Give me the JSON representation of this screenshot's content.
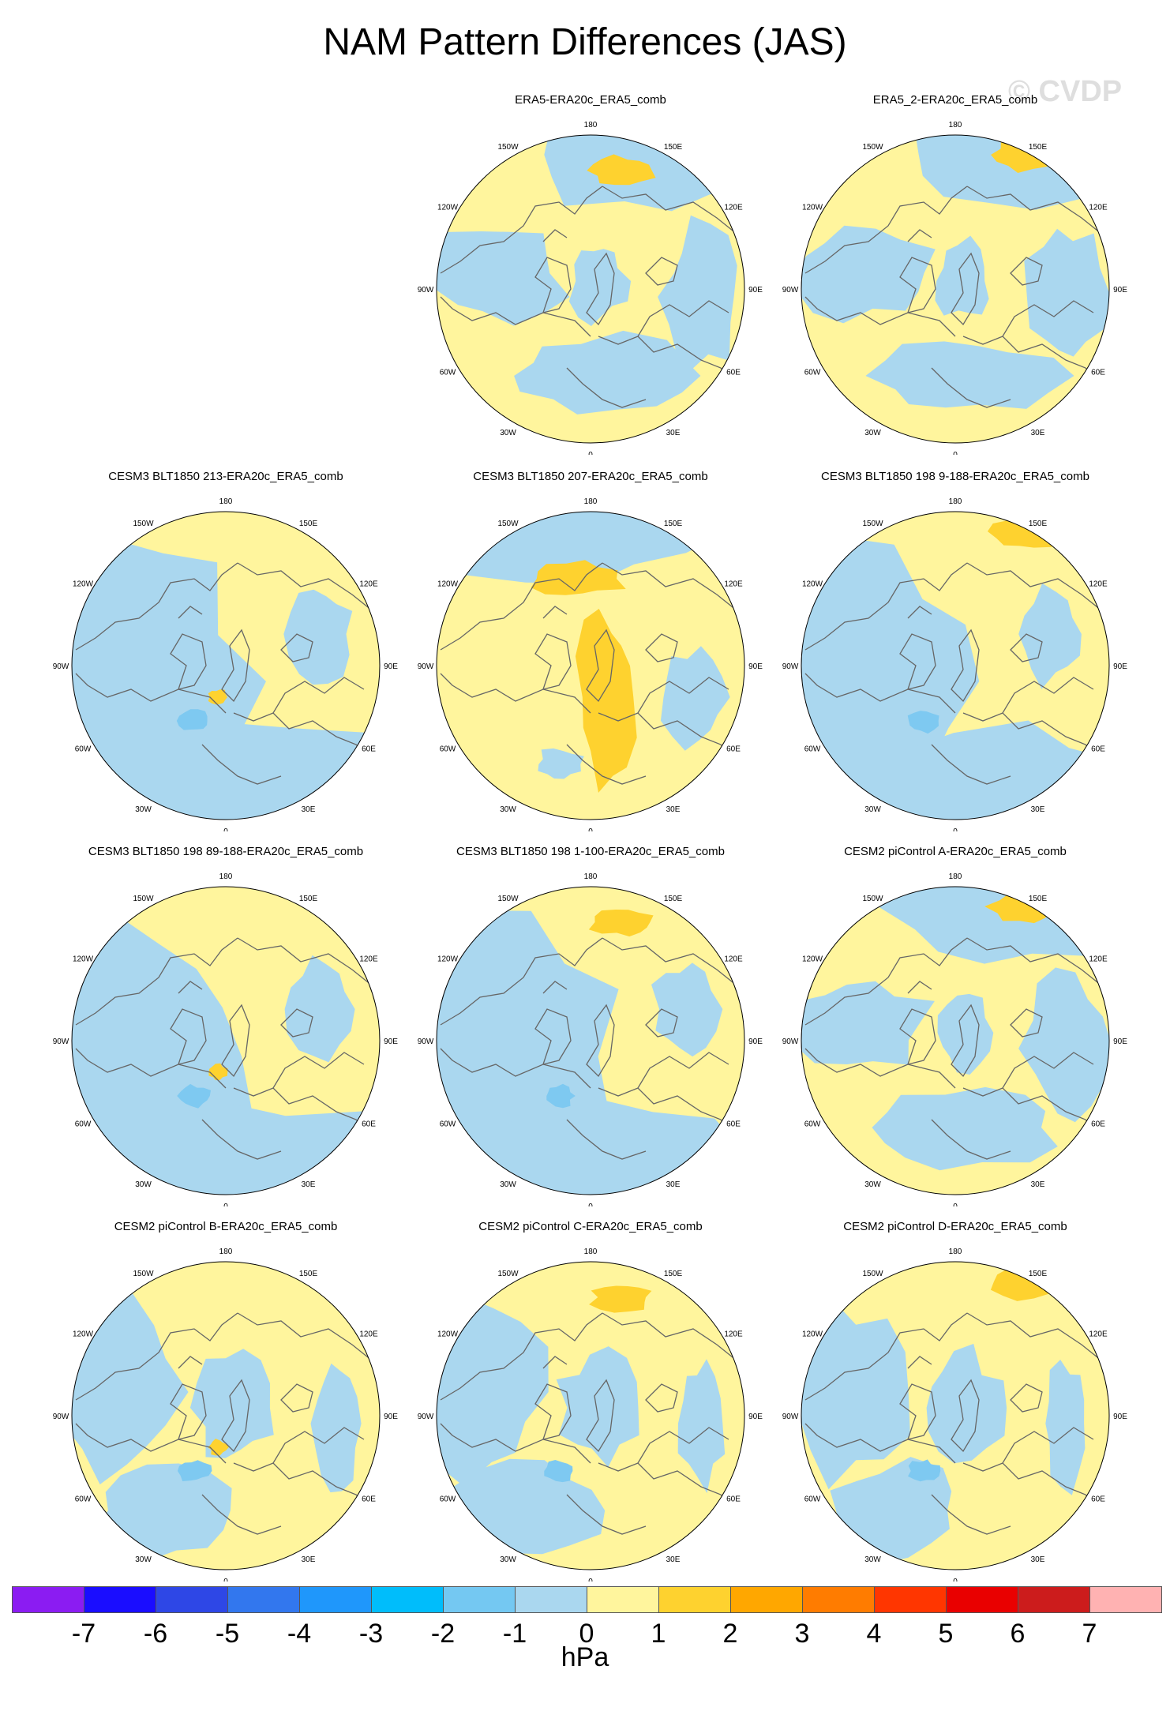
{
  "title": "NAM Pattern Differences (JAS)",
  "watermark": "© CVDP",
  "lon_labels": [
    "180",
    "150E",
    "120E",
    "90E",
    "60E",
    "30E",
    "0",
    "30W",
    "60W",
    "90W",
    "120W",
    "150W"
  ],
  "colors": {
    "neg1_0": "#aad7ef",
    "zero_1": "#fff59d",
    "one_2": "#fed22f",
    "neg2_neg1": "#7ec9f1",
    "coast": "#666666"
  },
  "panels": [
    {
      "title": "ERA5-ERA20c_ERA5_comb",
      "row": 0,
      "col": 1,
      "pattern": "mixed-blue-ring",
      "variant": 0
    },
    {
      "title": "ERA5_2-ERA20c_ERA5_comb",
      "row": 0,
      "col": 2,
      "pattern": "mixed-blue-ring",
      "variant": 1
    },
    {
      "title": "CESM3 BLT1850 213-ERA20c_ERA5_comb",
      "row": 1,
      "col": 0,
      "pattern": "blue-west",
      "variant": 2
    },
    {
      "title": "CESM3 BLT1850 207-ERA20c_ERA5_comb",
      "row": 1,
      "col": 1,
      "pattern": "yellow-orange",
      "variant": 3
    },
    {
      "title": "CESM3 BLT1850 198 9-188-ERA20c_ERA5_comb",
      "row": 1,
      "col": 2,
      "pattern": "blue-west",
      "variant": 4
    },
    {
      "title": "CESM3 BLT1850 198 89-188-ERA20c_ERA5_comb",
      "row": 2,
      "col": 0,
      "pattern": "blue-west",
      "variant": 5
    },
    {
      "title": "CESM3 BLT1850 198 1-100-ERA20c_ERA5_comb",
      "row": 2,
      "col": 1,
      "pattern": "blue-west",
      "variant": 6
    },
    {
      "title": "CESM2 piControl A-ERA20c_ERA5_comb",
      "row": 2,
      "col": 2,
      "pattern": "mixed-blue-ring",
      "variant": 7
    },
    {
      "title": "CESM2 piControl B-ERA20c_ERA5_comb",
      "row": 3,
      "col": 0,
      "pattern": "yellow-east",
      "variant": 8
    },
    {
      "title": "CESM2 piControl C-ERA20c_ERA5_comb",
      "row": 3,
      "col": 1,
      "pattern": "yellow-east",
      "variant": 9
    },
    {
      "title": "CESM2 piControl D-ERA20c_ERA5_comb",
      "row": 3,
      "col": 2,
      "pattern": "yellow-east",
      "variant": 10
    }
  ],
  "colorbar": {
    "units": "hPa",
    "levels": [
      "-7",
      "-6",
      "-5",
      "-4",
      "-3",
      "-2",
      "-1",
      "0",
      "1",
      "2",
      "3",
      "4",
      "5",
      "6",
      "7"
    ],
    "colors": [
      "#8b1cf2",
      "#1a0dff",
      "#2e47e6",
      "#3277ee",
      "#1f97fb",
      "#00bdfb",
      "#74c8f2",
      "#aad7ef",
      "#fff59d",
      "#fed22f",
      "#ffa700",
      "#ff7c00",
      "#ff3600",
      "#e90000",
      "#cc1c1c",
      "#ffb2b2"
    ]
  }
}
